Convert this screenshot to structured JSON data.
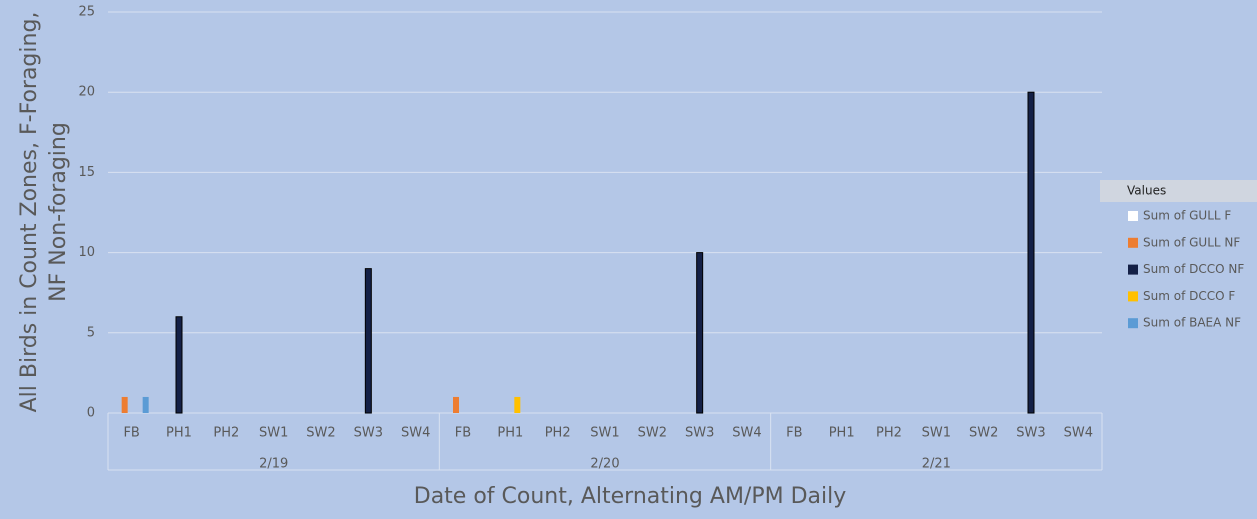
{
  "chart_data": {
    "type": "bar",
    "x_label": "Date of Count, Alternating AM/PM Daily",
    "y_label_lines": [
      "All Birds in Count Zones, F-Foraging,",
      "NF Non-foraging"
    ],
    "categories": [
      "FB",
      "PH1",
      "PH2",
      "SW1",
      "SW2",
      "SW3",
      "SW4",
      "FB",
      "PH1",
      "PH2",
      "SW1",
      "SW2",
      "SW3",
      "SW4",
      "FB",
      "PH1",
      "PH2",
      "SW1",
      "SW2",
      "SW3",
      "SW4"
    ],
    "groups": [
      {
        "label": "2/19",
        "size": 7
      },
      {
        "label": "2/20",
        "size": 7
      },
      {
        "label": "2/21",
        "size": 7
      }
    ],
    "legend_title": "Values",
    "legend_position": "right",
    "series": [
      {
        "name": "Sum of GULL F",
        "color": "#ffffff",
        "values": [
          0,
          0,
          0,
          0,
          0,
          0,
          0,
          0,
          0,
          0,
          0,
          0,
          0,
          0,
          0,
          0,
          0,
          0,
          0,
          0,
          0
        ]
      },
      {
        "name": "Sum of GULL NF",
        "color": "#ed7d31",
        "values": [
          1,
          0,
          0,
          0,
          0,
          0,
          0,
          1,
          0,
          0,
          0,
          0,
          0,
          0,
          0,
          0,
          0,
          0,
          0,
          0,
          0
        ]
      },
      {
        "name": "Sum of DCCO NF",
        "color": "#142046",
        "values": [
          0,
          6,
          0,
          0,
          0,
          9,
          0,
          0,
          0,
          0,
          0,
          0,
          10,
          0,
          0,
          0,
          0,
          0,
          0,
          20,
          0
        ]
      },
      {
        "name": "Sum of DCCO F",
        "color": "#ffc000",
        "values": [
          0,
          0,
          0,
          0,
          0,
          0,
          0,
          0,
          1,
          0,
          0,
          0,
          0,
          0,
          0,
          0,
          0,
          0,
          0,
          0,
          0
        ]
      },
      {
        "name": "Sum of BAEA NF",
        "color": "#5b9bd5",
        "values": [
          1,
          0,
          0,
          0,
          0,
          0,
          0,
          0,
          0,
          0,
          0,
          0,
          0,
          0,
          0,
          0,
          0,
          0,
          0,
          0,
          0
        ]
      }
    ],
    "ylim": [
      0,
      25
    ],
    "yticks": [
      0,
      5,
      10,
      15,
      20,
      25
    ],
    "grid": true
  }
}
